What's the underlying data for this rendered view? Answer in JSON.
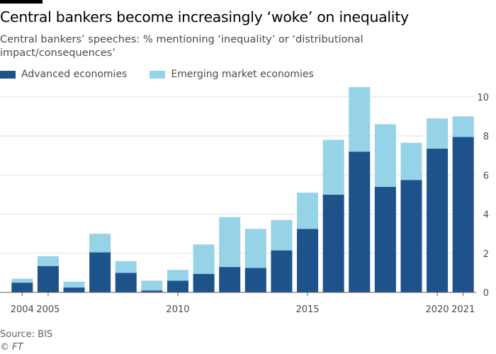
{
  "title": "Central bankers become increasingly ‘woke’ on inequality",
  "subtitle": "Central bankers’ speeches: % mentioning ‘inequality’ or ‘distributional impact/consequences’",
  "source": "Source: BIS",
  "copyright": "© FT",
  "colors": {
    "advanced": "#1e528b",
    "emerging": "#97d3e6",
    "grid": "#e6e2de"
  },
  "chart_data": {
    "type": "bar",
    "stacked": true,
    "categories": [
      "2004",
      "2005",
      "2006",
      "2007",
      "2008",
      "2009",
      "2010",
      "2011",
      "2012",
      "2013",
      "2014",
      "2015",
      "2016",
      "2017",
      "2018",
      "2019",
      "2020",
      "2021"
    ],
    "x_tick_labels": [
      "2004",
      "2005",
      "",
      "",
      "",
      "",
      "2010",
      "",
      "",
      "",
      "",
      "2015",
      "",
      "",
      "",
      "",
      "2020",
      "2021"
    ],
    "series": [
      {
        "name": "Advanced economies",
        "values": [
          0.5,
          1.35,
          0.25,
          2.05,
          1.0,
          0.1,
          0.6,
          0.95,
          1.3,
          1.25,
          2.15,
          3.25,
          5.0,
          7.2,
          5.4,
          5.75,
          7.35,
          7.95
        ]
      },
      {
        "name": "Emerging market economies",
        "values": [
          0.2,
          0.5,
          0.3,
          0.95,
          0.6,
          0.5,
          0.55,
          1.5,
          2.55,
          2.0,
          1.55,
          1.85,
          2.8,
          3.3,
          3.2,
          1.9,
          1.55,
          1.05
        ]
      }
    ],
    "ylim": [
      0,
      10.5
    ],
    "yticks": [
      0,
      2,
      4,
      6,
      8,
      10
    ],
    "y_axis_side": "right",
    "grid": true,
    "legend_position": "top-left"
  }
}
